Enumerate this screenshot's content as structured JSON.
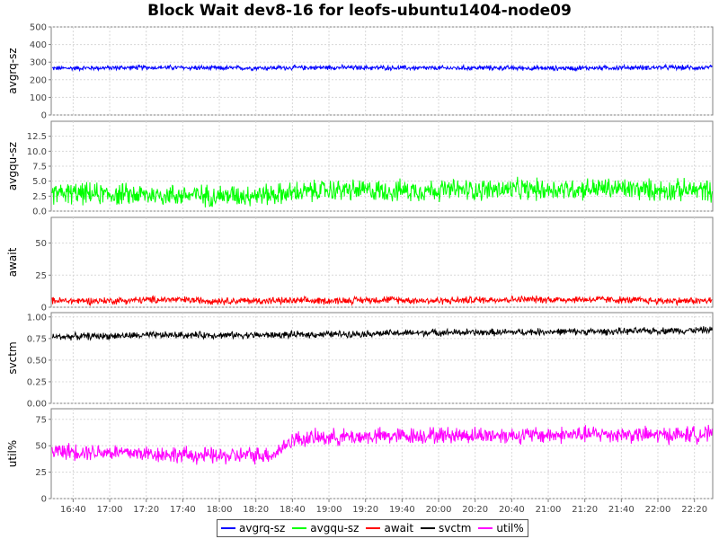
{
  "chart_data": {
    "type": "line",
    "title": "Block Wait dev8-16 for leofs-ubuntu1404-node09",
    "x_start_time": "16:28",
    "x_end_time": "22:30",
    "x_ticks": [
      "16:40",
      "17:00",
      "17:20",
      "17:40",
      "18:00",
      "18:20",
      "18:40",
      "19:00",
      "19:20",
      "19:40",
      "20:00",
      "20:20",
      "20:40",
      "21:00",
      "21:20",
      "21:40",
      "22:00",
      "22:20"
    ],
    "grid": true,
    "legend_position": "bottom",
    "panels": [
      {
        "ylabel": "avgrq-sz",
        "ylim": [
          0,
          500
        ],
        "yticks": [
          "0",
          "100",
          "200",
          "300",
          "400",
          "500"
        ],
        "series": [
          {
            "name": "avgrq-sz",
            "color": "#0000ff",
            "x": [
              "16:28",
              "17:00",
              "17:30",
              "18:00",
              "18:30",
              "19:00",
              "19:30",
              "20:00",
              "20:30",
              "21:00",
              "21:30",
              "22:00",
              "22:30"
            ],
            "values": [
              265,
              268,
              270,
              266,
              268,
              270,
              268,
              266,
              268,
              265,
              268,
              270,
              268
            ]
          }
        ]
      },
      {
        "ylabel": "avgqu-sz",
        "ylim": [
          0,
          15
        ],
        "yticks": [
          "0.0",
          "2.5",
          "5.0",
          "7.5",
          "10.0",
          "12.5"
        ],
        "series": [
          {
            "name": "avgqu-sz",
            "color": "#00ff00",
            "x": [
              "16:28",
              "17:00",
              "17:30",
              "18:00",
              "18:30",
              "19:00",
              "19:30",
              "20:00",
              "20:30",
              "21:00",
              "21:30",
              "22:00",
              "22:30"
            ],
            "values": [
              3.0,
              2.8,
              2.7,
              2.6,
              2.8,
              3.5,
              3.4,
              3.5,
              3.6,
              3.6,
              3.8,
              3.5,
              3.5
            ]
          }
        ]
      },
      {
        "ylabel": "await",
        "ylim": [
          0,
          70
        ],
        "yticks": [
          "0",
          "25",
          "50"
        ],
        "series": [
          {
            "name": "await",
            "color": "#ff0000",
            "x": [
              "16:28",
              "17:00",
              "17:30",
              "18:00",
              "18:30",
              "19:00",
              "19:30",
              "20:00",
              "20:30",
              "21:00",
              "21:30",
              "22:00",
              "22:30"
            ],
            "values": [
              5,
              5,
              6,
              5,
              5,
              5,
              6,
              5,
              6,
              6,
              6,
              5,
              5
            ]
          }
        ]
      },
      {
        "ylabel": "svctm",
        "ylim": [
          0,
          1.05
        ],
        "yticks": [
          "0.00",
          "0.25",
          "0.50",
          "0.75",
          "1.00"
        ],
        "series": [
          {
            "name": "svctm",
            "color": "#000000",
            "x": [
              "16:28",
              "17:00",
              "17:30",
              "18:00",
              "18:30",
              "19:00",
              "19:30",
              "20:00",
              "20:30",
              "21:00",
              "21:30",
              "22:00",
              "22:30"
            ],
            "values": [
              0.77,
              0.78,
              0.79,
              0.79,
              0.79,
              0.8,
              0.81,
              0.82,
              0.82,
              0.83,
              0.83,
              0.84,
              0.85
            ]
          }
        ]
      },
      {
        "ylabel": "util%",
        "ylim": [
          0,
          85
        ],
        "yticks": [
          "0",
          "25",
          "50",
          "75"
        ],
        "series": [
          {
            "name": "util%",
            "color": "#ff00ff",
            "x": [
              "16:28",
              "17:00",
              "17:30",
              "18:00",
              "18:30",
              "18:40",
              "19:00",
              "19:30",
              "20:00",
              "20:30",
              "21:00",
              "21:30",
              "22:00",
              "22:30"
            ],
            "values": [
              45,
              44,
              42,
              40,
              42,
              56,
              58,
              59,
              60,
              60,
              60,
              61,
              60,
              61
            ]
          }
        ]
      }
    ],
    "legend": [
      {
        "label": "avgrq-sz",
        "color": "#0000ff"
      },
      {
        "label": "avgqu-sz",
        "color": "#00ff00"
      },
      {
        "label": "await",
        "color": "#ff0000"
      },
      {
        "label": "svctm",
        "color": "#000000"
      },
      {
        "label": "util%",
        "color": "#ff00ff"
      }
    ]
  }
}
